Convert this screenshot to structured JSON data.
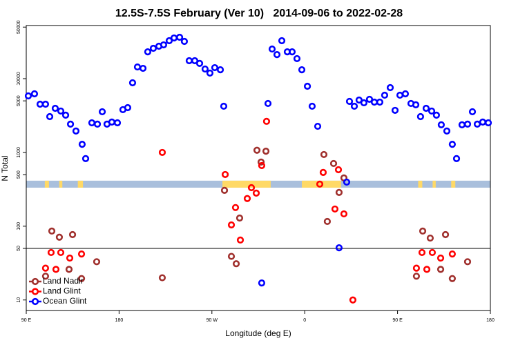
{
  "chart_data": {
    "type": "scatter",
    "title": "12.5S-7.5S February (Ver 10)   2014-09-06 to 2022-02-28",
    "x_label": "Longitude (deg E)",
    "y_label": "N Total",
    "log_y": true,
    "xlim": [
      90,
      540
    ],
    "xticks": [
      {
        "value": 90,
        "label": "90 E"
      },
      {
        "value": 180,
        "label": "180"
      },
      {
        "value": 270,
        "label": "90 W"
      },
      {
        "value": 360,
        "label": "0"
      },
      {
        "value": 450,
        "label": "90 E"
      },
      {
        "value": 540,
        "label": "180"
      }
    ],
    "ylim": [
      7.2,
      52500
    ],
    "yticks": [
      10,
      50,
      100,
      500,
      1000,
      5000,
      10000,
      50000
    ],
    "hline": 50,
    "band": [
      333,
      414
    ],
    "band_color": "#a9bfdc",
    "land_color": "#ffd966",
    "land_spans": [
      [
        280.2,
        327.0
      ],
      [
        357.2,
        395.3
      ],
      [
        108,
        112
      ],
      [
        122,
        125
      ],
      [
        140,
        145
      ],
      [
        470,
        474
      ],
      [
        484,
        487
      ],
      [
        502,
        506
      ]
    ],
    "legend": "lower left",
    "series": [
      {
        "name": "Land Nadir",
        "color": "#a0302d",
        "x": [
          108.7,
          114.8,
          122.1,
          131.5,
          134.9,
          143.6,
          158.3,
          221.9,
          282.2,
          288.9,
          293.6,
          296.9,
          313.7,
          317.7,
          322.4,
          378.6,
          381.9,
          388.0,
          393.3,
          398.0,
          468.3,
          474.4,
          481.7,
          491.8,
          496.5,
          503.1,
          517.9
        ],
        "values": [
          21,
          86,
          71,
          26,
          77,
          19.5,
          33,
          20,
          306,
          39,
          31,
          129,
          1070,
          740,
          1040,
          937,
          116,
          708,
          287,
          451,
          21,
          86,
          69,
          26,
          77,
          19.5,
          33
        ]
      },
      {
        "name": "Land Glint",
        "color": "#ff0000",
        "x": [
          108.7,
          114.1,
          118.8,
          123.5,
          132.2,
          143.6,
          221.9,
          282.9,
          288.9,
          292.9,
          297.6,
          304.3,
          308.3,
          313.0,
          318.3,
          323.0,
          374.6,
          377.9,
          389.3,
          392.7,
          398.0,
          406.7,
          468.3,
          473.7,
          478.4,
          483.7,
          491.8,
          503.1
        ],
        "values": [
          27,
          44,
          26,
          44,
          37,
          42,
          1000,
          502,
          104,
          179,
          65,
          237,
          333,
          281,
          664,
          2640,
          372,
          536,
          171,
          583,
          147,
          10,
          27,
          44,
          26,
          44,
          37,
          42
        ]
      },
      {
        "name": "Ocean Glint",
        "color": "#0000ff",
        "x": [
          92.0,
          98.0,
          103.4,
          108.7,
          112.8,
          118.1,
          123.5,
          128.2,
          132.9,
          138.2,
          144.2,
          147.6,
          153.6,
          159.0,
          163.7,
          168.3,
          173.0,
          178.4,
          183.7,
          188.4,
          193.1,
          197.8,
          203.2,
          207.8,
          213.2,
          218.6,
          223.2,
          228.6,
          233.3,
          238.7,
          243.3,
          248.0,
          253.4,
          258.1,
          263.4,
          268.1,
          272.8,
          278.2,
          281.5,
          318.3,
          324.4,
          328.4,
          333.1,
          337.8,
          343.1,
          347.8,
          352.5,
          357.2,
          362.6,
          367.2,
          372.6,
          393.3,
          400.7,
          403.4,
          408.1,
          412.7,
          417.4,
          422.8,
          427.5,
          432.8,
          437.5,
          442.9,
          447.6,
          452.3,
          457.6,
          463.0,
          467.7,
          472.3,
          477.7,
          483.1,
          487.7,
          492.4,
          497.8,
          503.1,
          507.2,
          512.5,
          517.9,
          522.6,
          527.3,
          532.6,
          538.0
        ],
        "values": [
          5840,
          6230,
          4510,
          4510,
          3060,
          3960,
          3640,
          3200,
          2420,
          1950,
          1290,
          824,
          2520,
          2420,
          3560,
          2420,
          2580,
          2520,
          3800,
          4050,
          8790,
          14400,
          13800,
          23100,
          25800,
          27500,
          28700,
          32700,
          35600,
          36400,
          32000,
          17500,
          17500,
          16100,
          13500,
          11900,
          14100,
          13200,
          4230,
          17,
          4610,
          25200,
          21200,
          32700,
          23100,
          23100,
          18700,
          13200,
          7890,
          4230,
          2260,
          51,
          396,
          4920,
          4230,
          5130,
          4710,
          5250,
          4810,
          4810,
          5970,
          7560,
          3720,
          5970,
          6230,
          4610,
          4420,
          3060,
          3960,
          3640,
          3200,
          2370,
          1950,
          1290,
          824,
          2370,
          2420,
          3560,
          2420,
          2580,
          2520
        ]
      }
    ]
  }
}
